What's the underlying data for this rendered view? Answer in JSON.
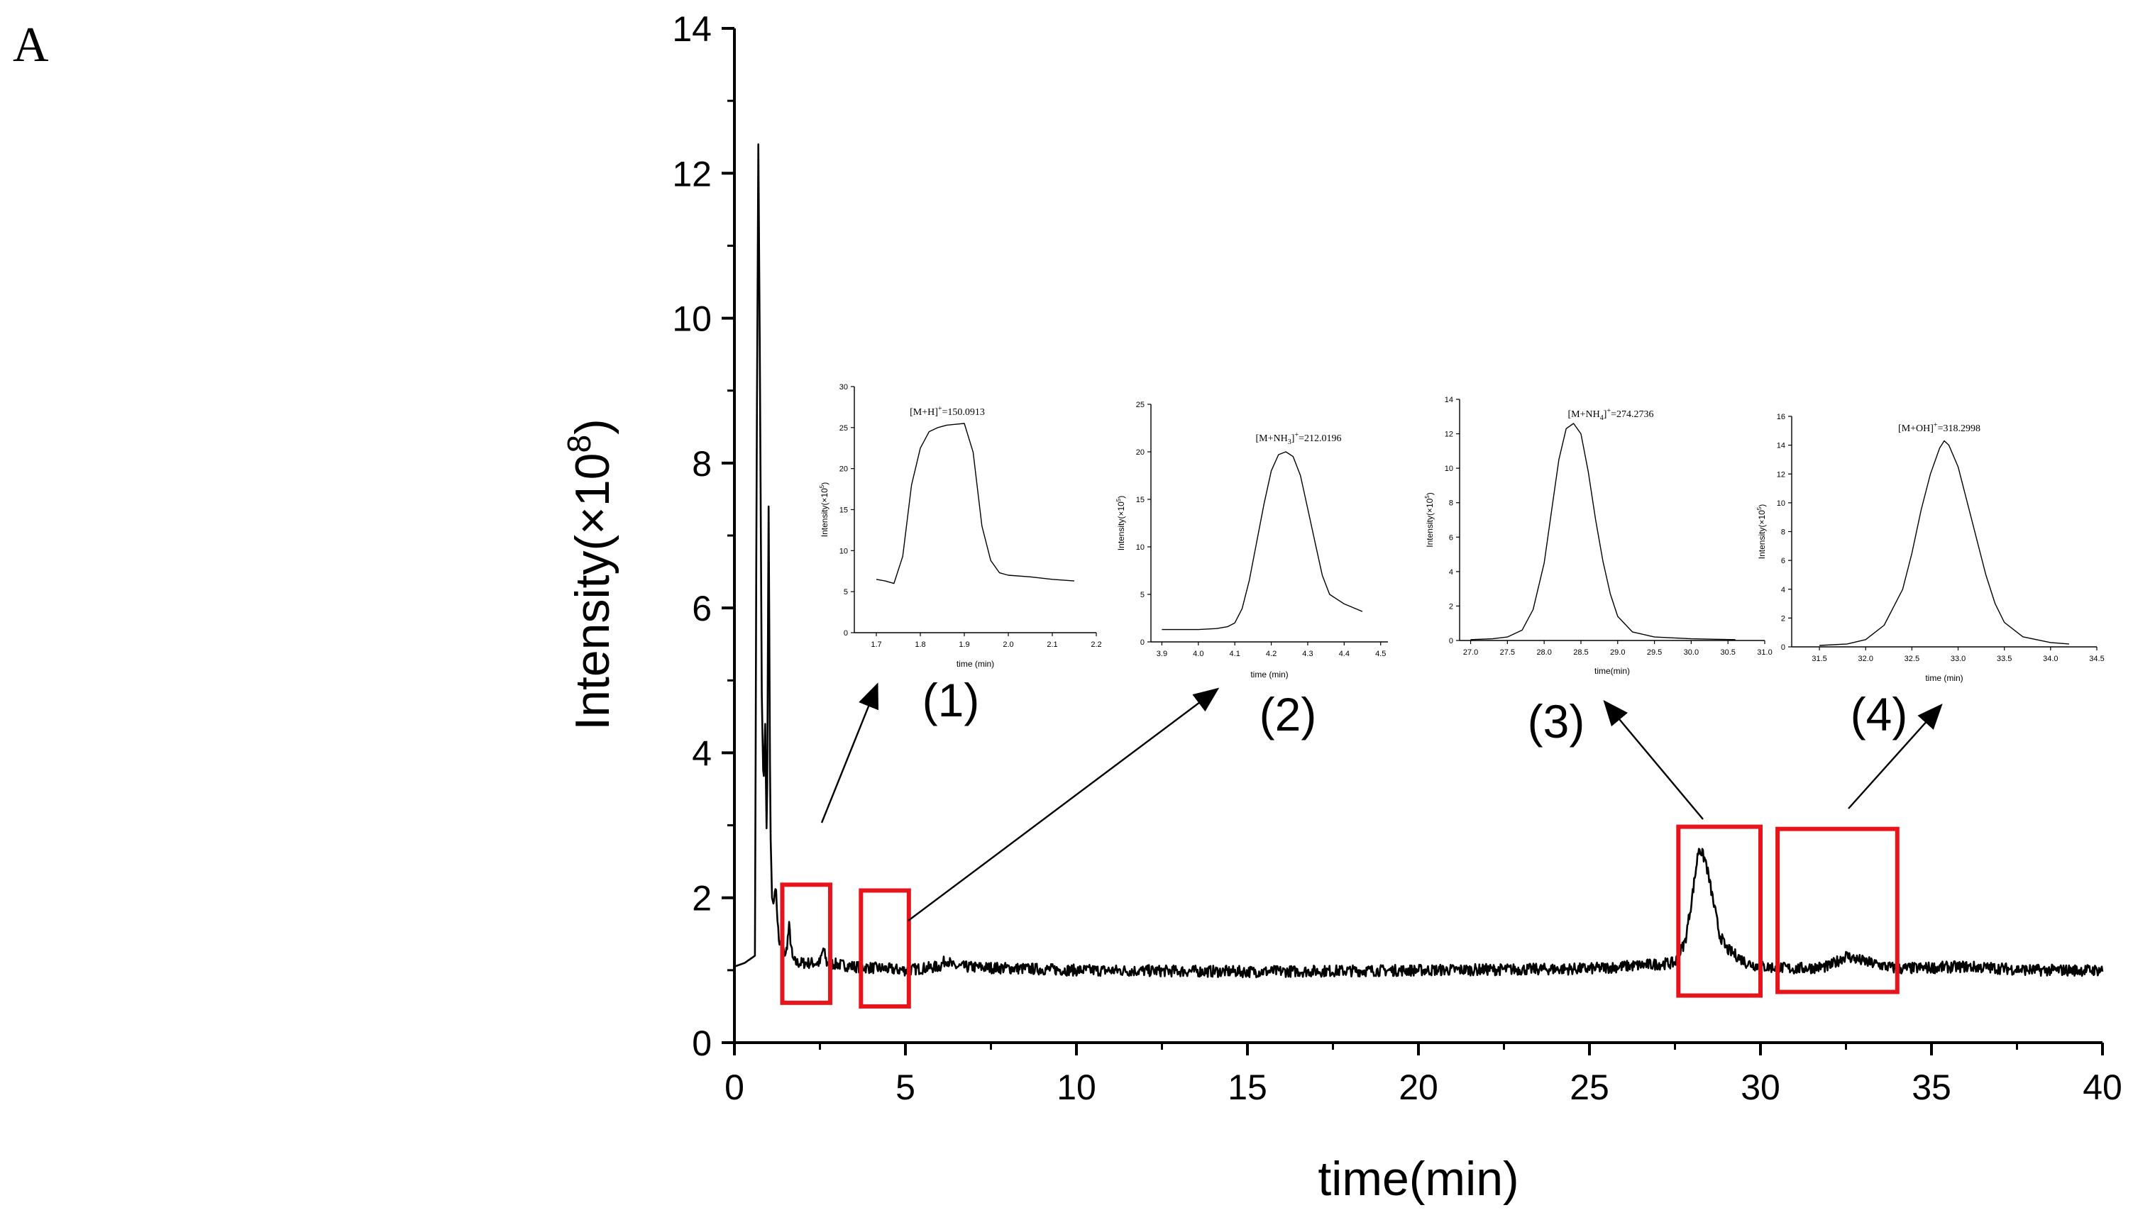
{
  "figure": {
    "panel_label": "A"
  },
  "chart_data": [
    {
      "id": "main",
      "type": "line",
      "title": "",
      "xlabel": "time(min)",
      "ylabel": "Intensity(×10",
      "ylabel_superscript": "8",
      "ylabel_close": ")",
      "xlim": [
        0,
        40
      ],
      "ylim": [
        0,
        14
      ],
      "xticks": [
        0,
        5,
        10,
        15,
        20,
        25,
        30,
        35,
        40
      ],
      "yticks": [
        0,
        2,
        4,
        6,
        8,
        10,
        12,
        14
      ],
      "grid": false,
      "baseline": 1.0,
      "x": [
        0,
        0.3,
        0.6,
        0.65,
        0.7,
        0.75,
        0.8,
        0.85,
        0.9,
        0.95,
        1.0,
        1.05,
        1.1,
        1.15,
        1.2,
        1.3,
        1.5,
        1.6,
        1.7,
        1.8,
        2.5,
        2.6,
        2.7,
        3.5,
        5.0,
        6.0,
        6.2,
        6.4,
        10,
        15,
        20,
        25,
        27.5,
        27.8,
        28.0,
        28.2,
        28.4,
        28.6,
        28.8,
        29.0,
        29.3,
        29.6,
        30.0,
        31.0,
        32.0,
        32.5,
        32.8,
        33.2,
        34.0,
        36.0,
        38.0,
        40.0
      ],
      "y": [
        1.05,
        1.1,
        1.2,
        8.0,
        12.4,
        9.0,
        4.8,
        3.5,
        4.4,
        2.6,
        7.4,
        3.0,
        2.0,
        1.9,
        2.2,
        1.4,
        1.2,
        1.6,
        1.15,
        1.1,
        1.1,
        1.3,
        1.1,
        1.05,
        1.0,
        1.05,
        1.15,
        1.05,
        1.0,
        0.98,
        1.0,
        1.02,
        1.1,
        1.4,
        2.0,
        2.7,
        2.5,
        2.0,
        1.5,
        1.3,
        1.2,
        1.1,
        1.05,
        1.02,
        1.05,
        1.2,
        1.15,
        1.1,
        1.02,
        1.05,
        1.0,
        1.0
      ],
      "highlight_boxes": [
        {
          "label": "(1)",
          "x_range": [
            1.4,
            2.8
          ],
          "y_range": [
            0.55,
            2.18
          ]
        },
        {
          "label": "(2)",
          "x_range": [
            3.7,
            5.1
          ],
          "y_range": [
            0.5,
            2.1
          ]
        },
        {
          "label": "(3)",
          "x_range": [
            27.6,
            30.0
          ],
          "y_range": [
            0.65,
            2.98
          ]
        },
        {
          "label": "(4)",
          "x_range": [
            30.5,
            34.0
          ],
          "y_range": [
            0.7,
            2.95
          ]
        }
      ]
    },
    {
      "id": "inset1",
      "type": "line",
      "tag": "(1)",
      "annotation": "[M+H]",
      "annotation_sup": "+",
      "annotation_value": "=150.0913",
      "xlabel": "time (min)",
      "ylabel": "Intensity(×10",
      "ylabel_superscript": "5",
      "ylabel_close": ")",
      "xlim": [
        1.65,
        2.2
      ],
      "ylim": [
        0,
        30
      ],
      "xticks": [
        1.7,
        1.8,
        1.9,
        2.0,
        2.1,
        2.2
      ],
      "xtick_labels": [
        "1.7",
        "1.8",
        "1.9",
        "2.0",
        "2.1",
        "2.2"
      ],
      "yticks": [
        0,
        5,
        10,
        15,
        20,
        25,
        30
      ],
      "x": [
        1.7,
        1.72,
        1.74,
        1.76,
        1.78,
        1.8,
        1.82,
        1.84,
        1.86,
        1.88,
        1.9,
        1.92,
        1.94,
        1.96,
        1.98,
        2.0,
        2.05,
        2.1,
        2.15
      ],
      "y": [
        6.5,
        6.3,
        6.0,
        9.3,
        18.0,
        22.5,
        24.5,
        25.0,
        25.3,
        25.4,
        25.5,
        22.0,
        13.0,
        8.8,
        7.3,
        7.0,
        6.8,
        6.5,
        6.3
      ]
    },
    {
      "id": "inset2",
      "type": "line",
      "tag": "(2)",
      "annotation": "[M+NH",
      "annotation_sub": "3",
      "annotation_close": "]",
      "annotation_sup": "+",
      "annotation_value": "=212.0196",
      "xlabel": "time (min)",
      "ylabel": "Intensity(×10",
      "ylabel_superscript": "5",
      "ylabel_close": ")",
      "xlim": [
        3.87,
        4.52
      ],
      "ylim": [
        0,
        25
      ],
      "xticks": [
        3.9,
        4.0,
        4.1,
        4.2,
        4.3,
        4.4,
        4.5
      ],
      "xtick_labels": [
        "3.9",
        "4.0",
        "4.1",
        "4.2",
        "4.3",
        "4.4",
        "4.5"
      ],
      "yticks": [
        0,
        5,
        10,
        15,
        20,
        25
      ],
      "x": [
        3.9,
        4.0,
        4.05,
        4.08,
        4.1,
        4.12,
        4.14,
        4.16,
        4.18,
        4.2,
        4.22,
        4.24,
        4.26,
        4.28,
        4.3,
        4.32,
        4.34,
        4.36,
        4.4,
        4.45
      ],
      "y": [
        1.3,
        1.3,
        1.4,
        1.6,
        2.0,
        3.5,
        6.5,
        10.5,
        14.5,
        18.0,
        19.7,
        20.0,
        19.5,
        17.5,
        14.0,
        10.5,
        7.0,
        5.0,
        4.0,
        3.2
      ]
    },
    {
      "id": "inset3",
      "type": "line",
      "tag": "(3)",
      "annotation": "[M+NH",
      "annotation_sub": "4",
      "annotation_close": "]",
      "annotation_sup": "+",
      "annotation_value": "=274.2736",
      "xlabel": "time(min)",
      "ylabel": "Intensity(×10",
      "ylabel_superscript": "5",
      "ylabel_close": ")",
      "xlim": [
        26.85,
        31.0
      ],
      "ylim": [
        0,
        14
      ],
      "xticks": [
        27.0,
        27.5,
        28.0,
        28.5,
        29.0,
        29.5,
        30.0,
        30.5,
        31.0
      ],
      "xtick_labels": [
        "27.0",
        "27.5",
        "28.0",
        "28.5",
        "29.0",
        "29.5",
        "30.0",
        "30.5",
        "31.0"
      ],
      "yticks": [
        0,
        2,
        4,
        6,
        8,
        10,
        12,
        14
      ],
      "x": [
        27.0,
        27.3,
        27.5,
        27.7,
        27.85,
        28.0,
        28.1,
        28.2,
        28.3,
        28.4,
        28.5,
        28.6,
        28.7,
        28.8,
        28.9,
        29.0,
        29.2,
        29.5,
        30.0,
        30.6
      ],
      "y": [
        0.05,
        0.1,
        0.2,
        0.6,
        1.8,
        4.5,
        7.5,
        10.5,
        12.3,
        12.6,
        12.0,
        9.8,
        7.0,
        4.6,
        2.7,
        1.4,
        0.5,
        0.2,
        0.1,
        0.05
      ]
    },
    {
      "id": "inset4",
      "type": "line",
      "tag": "(4)",
      "annotation": "[M+OH]",
      "annotation_sup": "+",
      "annotation_value": "=318.2998",
      "xlabel": "time (min)",
      "ylabel": "Intensity(×10",
      "ylabel_superscript": "5",
      "ylabel_close": ")",
      "xlim": [
        31.2,
        34.5
      ],
      "ylim": [
        0,
        16
      ],
      "xticks": [
        31.5,
        32.0,
        32.5,
        33.0,
        33.5,
        34.0,
        34.5
      ],
      "xtick_labels": [
        "31.5",
        "32.0",
        "32.5",
        "33.0",
        "33.5",
        "34.0",
        "34.5"
      ],
      "yticks": [
        0,
        2,
        4,
        6,
        8,
        10,
        12,
        14,
        16
      ],
      "x": [
        31.5,
        31.8,
        32.0,
        32.2,
        32.4,
        32.5,
        32.6,
        32.7,
        32.8,
        32.85,
        32.9,
        33.0,
        33.1,
        33.2,
        33.3,
        33.4,
        33.5,
        33.7,
        34.0,
        34.2
      ],
      "y": [
        0.1,
        0.2,
        0.5,
        1.5,
        4.0,
        6.5,
        9.5,
        12.0,
        13.8,
        14.3,
        14.0,
        12.5,
        10.0,
        7.5,
        5.0,
        3.0,
        1.7,
        0.7,
        0.3,
        0.2
      ]
    }
  ]
}
